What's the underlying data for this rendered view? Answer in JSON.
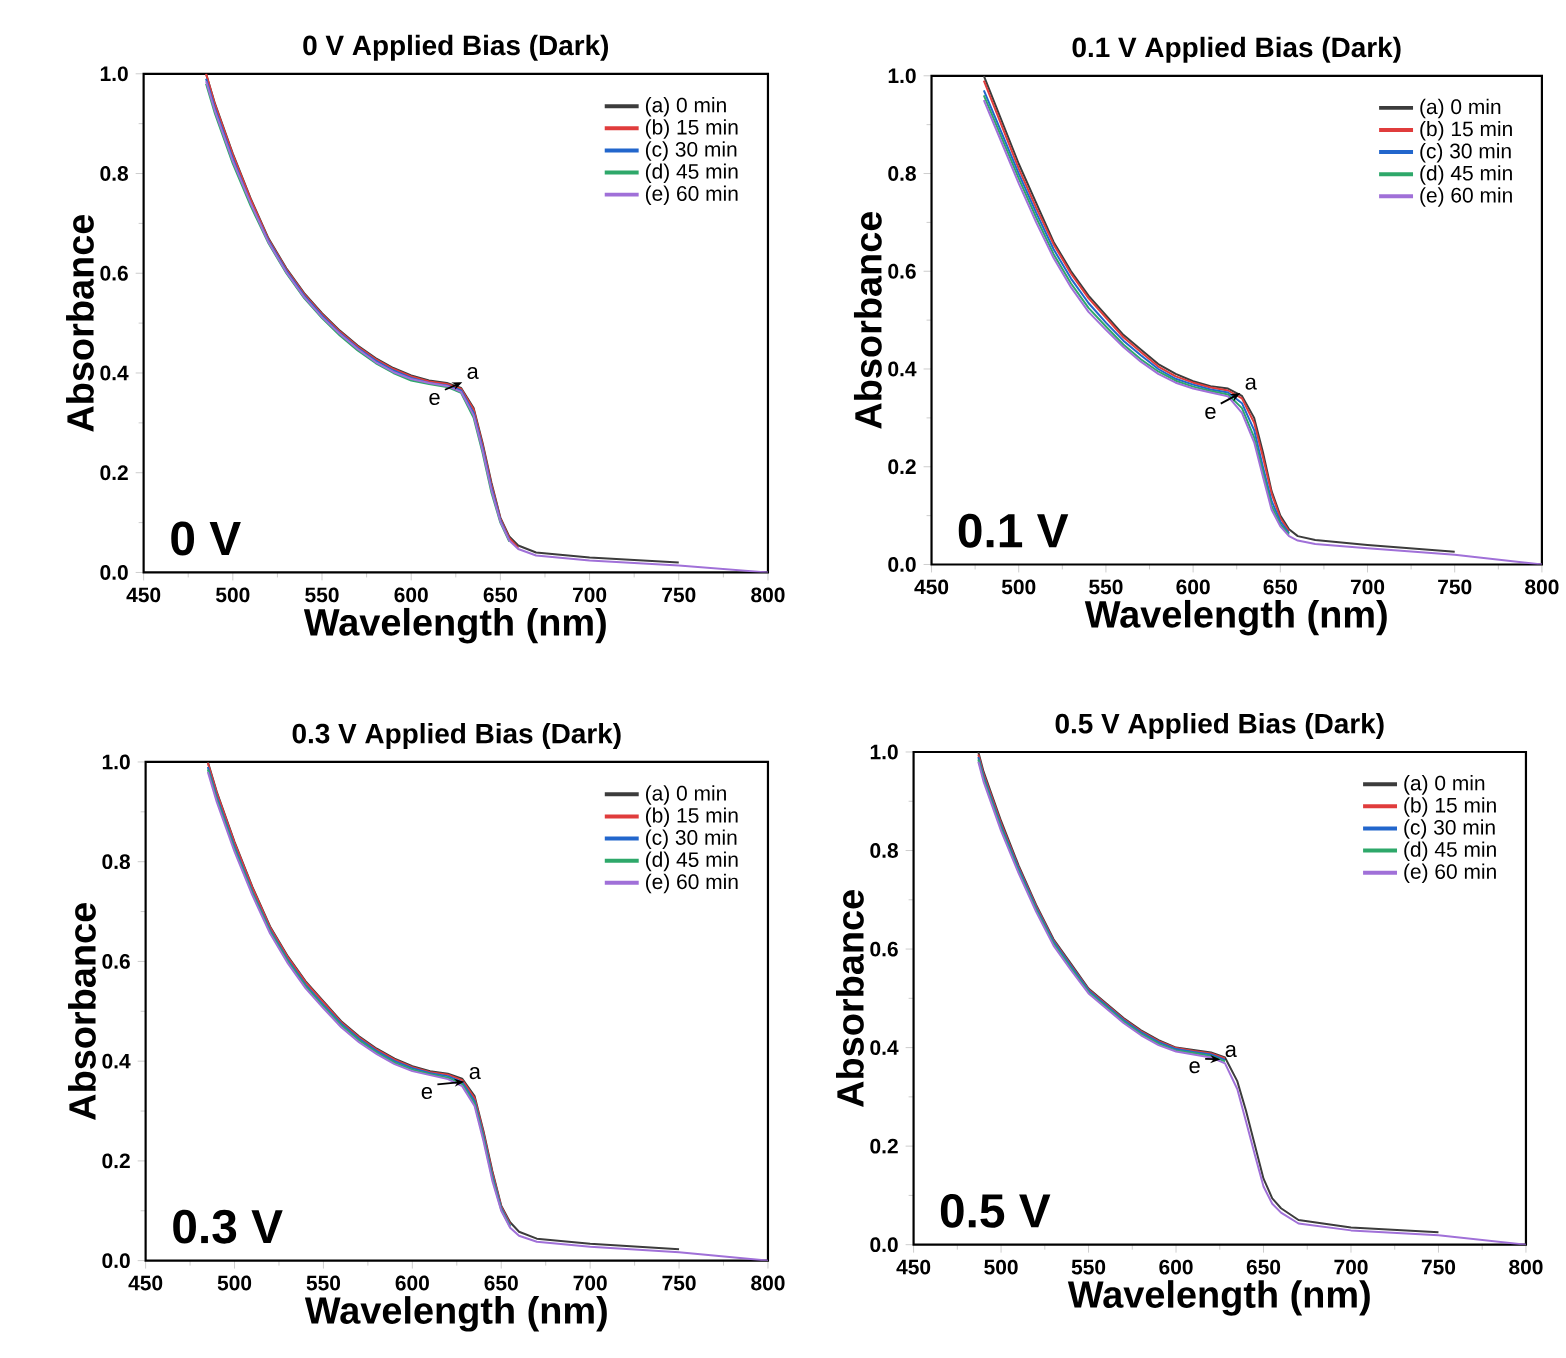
{
  "chart_data": [
    {
      "type": "line",
      "title": "0 V Applied Bias (Dark)",
      "xlabel": "Wavelength (nm)",
      "ylabel": "Absorbance",
      "legend": "top right",
      "line_style": "solid",
      "xlim": [
        450,
        800
      ],
      "ylim": [
        0,
        1
      ],
      "xticks": [
        450,
        500,
        550,
        600,
        650,
        700,
        750,
        800
      ],
      "yticks": [
        {
          "value": 0,
          "label": "0.0"
        },
        {
          "value": 0.2,
          "label": "0.2"
        },
        {
          "value": 0.4,
          "label": "0.4"
        },
        {
          "value": 0.6,
          "label": "0.6"
        },
        {
          "value": 0.8,
          "label": "0.8"
        },
        {
          "value": 1,
          "label": "1.0"
        }
      ],
      "x": [
        485,
        490,
        500,
        510,
        520,
        530,
        540,
        550,
        560,
        570,
        580,
        590,
        600,
        610,
        620,
        628,
        635,
        640,
        645,
        650,
        655,
        660,
        670,
        700,
        750,
        800
      ],
      "series": [
        {
          "name": "(a) 0 min",
          "color": "#3c3c3c",
          "values": [
            1.0,
            0.94,
            0.84,
            0.75,
            0.67,
            0.61,
            0.56,
            0.52,
            0.485,
            0.455,
            0.43,
            0.41,
            0.395,
            0.385,
            0.38,
            0.37,
            0.33,
            0.26,
            0.18,
            0.11,
            0.072,
            0.054,
            0.04,
            0.03,
            0.02,
            null
          ]
        },
        {
          "name": "(b) 15 min",
          "color": "#e03c3c",
          "values": [
            1.0,
            0.938,
            0.838,
            0.748,
            0.668,
            0.608,
            0.558,
            0.518,
            0.483,
            0.453,
            0.428,
            0.408,
            0.393,
            0.383,
            0.378,
            0.368,
            0.327,
            0.256,
            0.176,
            0.108,
            0.069,
            0.049,
            null,
            null,
            null,
            null
          ]
        },
        {
          "name": "(c) 30 min",
          "color": "#2266cc",
          "values": [
            0.99,
            0.93,
            0.83,
            0.74,
            0.665,
            0.605,
            0.555,
            0.515,
            0.48,
            0.45,
            0.425,
            0.405,
            0.39,
            0.38,
            0.375,
            0.365,
            0.32,
            0.25,
            0.17,
            0.105,
            0.065,
            null,
            null,
            null,
            null,
            null
          ]
        },
        {
          "name": "(d) 45 min",
          "color": "#2ea86a",
          "values": [
            0.98,
            0.92,
            0.82,
            0.735,
            0.66,
            0.6,
            0.55,
            0.51,
            0.475,
            0.445,
            0.42,
            0.4,
            0.385,
            0.378,
            0.372,
            0.36,
            0.31,
            0.24,
            0.16,
            0.1,
            0.062,
            null,
            null,
            null,
            null,
            null
          ]
        },
        {
          "name": "(e) 60 min",
          "color": "#a070d8",
          "values": [
            0.985,
            0.925,
            0.825,
            0.74,
            0.662,
            0.602,
            0.552,
            0.512,
            0.478,
            0.448,
            0.422,
            0.402,
            0.388,
            0.38,
            0.374,
            0.362,
            0.315,
            0.245,
            0.165,
            0.102,
            0.064,
            0.047,
            0.034,
            0.024,
            0.014,
            0.0
          ]
        }
      ],
      "annotations": [
        "e",
        "a",
        "0 V"
      ]
    },
    {
      "type": "line",
      "title": "0.1 V Applied Bias (Dark)",
      "xlabel": "Wavelength (nm)",
      "ylabel": "Absorbance",
      "legend": "top right",
      "line_style": "solid",
      "xlim": [
        450,
        800
      ],
      "ylim": [
        0,
        1
      ],
      "xticks": [
        450,
        500,
        550,
        600,
        650,
        700,
        750,
        800
      ],
      "yticks": [
        {
          "value": 0,
          "label": "0.0"
        },
        {
          "value": 0.2,
          "label": "0.2"
        },
        {
          "value": 0.4,
          "label": "0.4"
        },
        {
          "value": 0.6,
          "label": "0.6"
        },
        {
          "value": 0.8,
          "label": "0.8"
        },
        {
          "value": 1,
          "label": "1.0"
        }
      ],
      "x": [
        480,
        490,
        500,
        510,
        520,
        530,
        540,
        550,
        560,
        570,
        580,
        590,
        600,
        610,
        620,
        628,
        635,
        640,
        645,
        650,
        655,
        660,
        670,
        700,
        750,
        800
      ],
      "series": [
        {
          "name": "(a) 0 min",
          "color": "#3c3c3c",
          "values": [
            1.0,
            0.91,
            0.82,
            0.74,
            0.66,
            0.6,
            0.55,
            0.51,
            0.47,
            0.44,
            0.41,
            0.39,
            0.375,
            0.365,
            0.36,
            0.345,
            0.3,
            0.23,
            0.15,
            0.1,
            0.072,
            0.058,
            0.05,
            0.04,
            0.026,
            null
          ]
        },
        {
          "name": "(b) 15 min",
          "color": "#e03c3c",
          "values": [
            0.99,
            0.9,
            0.81,
            0.73,
            0.655,
            0.595,
            0.545,
            0.505,
            0.465,
            0.435,
            0.405,
            0.385,
            0.372,
            0.362,
            0.356,
            0.34,
            0.29,
            0.22,
            0.145,
            0.095,
            0.068,
            null,
            null,
            null,
            null,
            null
          ]
        },
        {
          "name": "(c) 30 min",
          "color": "#2266cc",
          "values": [
            0.97,
            0.885,
            0.8,
            0.72,
            0.645,
            0.585,
            0.535,
            0.495,
            0.458,
            0.428,
            0.4,
            0.38,
            0.368,
            0.358,
            0.352,
            0.33,
            0.275,
            0.2,
            0.13,
            0.088,
            0.064,
            null,
            null,
            null,
            null,
            null
          ]
        },
        {
          "name": "(d) 45 min",
          "color": "#2ea86a",
          "values": [
            0.96,
            0.875,
            0.79,
            0.71,
            0.635,
            0.575,
            0.525,
            0.487,
            0.45,
            0.42,
            0.395,
            0.376,
            0.364,
            0.355,
            0.348,
            0.32,
            0.26,
            0.19,
            0.12,
            0.082,
            0.061,
            null,
            null,
            null,
            null,
            null
          ]
        },
        {
          "name": "(e) 60 min",
          "color": "#a070d8",
          "values": [
            0.95,
            0.865,
            0.78,
            0.7,
            0.627,
            0.567,
            0.517,
            0.48,
            0.445,
            0.415,
            0.39,
            0.372,
            0.36,
            0.352,
            0.344,
            0.31,
            0.25,
            0.18,
            0.112,
            0.078,
            0.058,
            0.049,
            0.042,
            0.033,
            0.02,
            0.0
          ]
        }
      ],
      "annotations": [
        "e",
        "a",
        "0.1 V"
      ]
    },
    {
      "type": "line",
      "title": "0.3 V Applied Bias (Dark)",
      "xlabel": "Wavelength (nm)",
      "ylabel": "Absorbance",
      "legend": "top right",
      "line_style": "solid",
      "xlim": [
        450,
        800
      ],
      "ylim": [
        0,
        1
      ],
      "xticks": [
        450,
        500,
        550,
        600,
        650,
        700,
        750,
        800
      ],
      "yticks": [
        {
          "value": 0,
          "label": "0.0"
        },
        {
          "value": 0.2,
          "label": "0.2"
        },
        {
          "value": 0.4,
          "label": "0.4"
        },
        {
          "value": 0.6,
          "label": "0.6"
        },
        {
          "value": 0.8,
          "label": "0.8"
        },
        {
          "value": 1,
          "label": "1.0"
        }
      ],
      "x": [
        485,
        490,
        500,
        510,
        520,
        530,
        540,
        550,
        560,
        570,
        580,
        590,
        600,
        610,
        620,
        628,
        635,
        640,
        645,
        650,
        655,
        660,
        670,
        700,
        750,
        800
      ],
      "series": [
        {
          "name": "(a) 0 min",
          "color": "#3c3c3c",
          "values": [
            1.0,
            0.94,
            0.84,
            0.75,
            0.67,
            0.61,
            0.56,
            0.52,
            0.48,
            0.45,
            0.425,
            0.405,
            0.39,
            0.38,
            0.375,
            0.365,
            0.33,
            0.26,
            0.18,
            0.11,
            0.077,
            0.058,
            0.044,
            0.034,
            0.023,
            null
          ]
        },
        {
          "name": "(b) 15 min",
          "color": "#e03c3c",
          "values": [
            0.998,
            0.938,
            0.838,
            0.748,
            0.668,
            0.608,
            0.558,
            0.518,
            0.478,
            0.448,
            0.423,
            0.403,
            0.388,
            0.378,
            0.373,
            0.362,
            0.326,
            0.256,
            0.176,
            0.108,
            0.073,
            null,
            null,
            null,
            null,
            null
          ]
        },
        {
          "name": "(c) 30 min",
          "color": "#2266cc",
          "values": [
            0.99,
            0.93,
            0.83,
            0.74,
            0.663,
            0.603,
            0.553,
            0.513,
            0.475,
            0.445,
            0.42,
            0.4,
            0.386,
            0.376,
            0.37,
            0.358,
            0.32,
            0.25,
            0.17,
            0.105,
            0.07,
            null,
            null,
            null,
            null,
            null
          ]
        },
        {
          "name": "(d) 45 min",
          "color": "#2ea86a",
          "values": [
            0.985,
            0.925,
            0.825,
            0.737,
            0.66,
            0.6,
            0.55,
            0.51,
            0.472,
            0.442,
            0.417,
            0.397,
            0.383,
            0.374,
            0.367,
            0.354,
            0.315,
            0.245,
            0.165,
            0.102,
            0.068,
            null,
            null,
            null,
            null,
            null
          ]
        },
        {
          "name": "(e) 60 min",
          "color": "#a070d8",
          "values": [
            0.98,
            0.92,
            0.82,
            0.733,
            0.656,
            0.596,
            0.546,
            0.506,
            0.468,
            0.438,
            0.414,
            0.394,
            0.38,
            0.372,
            0.364,
            0.35,
            0.31,
            0.24,
            0.16,
            0.1,
            0.066,
            0.05,
            0.038,
            0.028,
            0.017,
            0.0
          ]
        }
      ],
      "annotations": [
        "e",
        "a",
        "0.3 V"
      ]
    },
    {
      "type": "line",
      "title": "0.5 V Applied Bias (Dark)",
      "xlabel": "Wavelength (nm)",
      "ylabel": "Absorbance",
      "legend": "top right",
      "line_style": "solid",
      "xlim": [
        450,
        800
      ],
      "ylim": [
        0,
        1
      ],
      "xticks": [
        450,
        500,
        550,
        600,
        650,
        700,
        750,
        800
      ],
      "yticks": [
        {
          "value": 0,
          "label": "0.0"
        },
        {
          "value": 0.2,
          "label": "0.2"
        },
        {
          "value": 0.4,
          "label": "0.4"
        },
        {
          "value": 0.6,
          "label": "0.6"
        },
        {
          "value": 0.8,
          "label": "0.8"
        },
        {
          "value": 1,
          "label": "1.0"
        }
      ],
      "x": [
        487,
        490,
        500,
        510,
        520,
        530,
        540,
        550,
        560,
        570,
        580,
        590,
        600,
        610,
        620,
        628,
        635,
        640,
        645,
        650,
        655,
        660,
        670,
        700,
        750,
        800
      ],
      "series": [
        {
          "name": "(a) 0 min",
          "color": "#3c3c3c",
          "values": [
            1.0,
            0.96,
            0.86,
            0.77,
            0.69,
            0.62,
            0.57,
            0.52,
            0.49,
            0.46,
            0.435,
            0.415,
            0.4,
            0.395,
            0.39,
            0.38,
            0.332,
            0.272,
            0.203,
            0.134,
            0.094,
            0.074,
            0.05,
            0.035,
            0.025,
            null
          ]
        },
        {
          "name": "(b) 15 min",
          "color": "#e03c3c",
          "values": [
            0.995,
            0.955,
            0.855,
            0.766,
            0.687,
            0.617,
            0.567,
            0.518,
            0.488,
            0.458,
            0.433,
            0.413,
            0.399,
            0.393,
            0.388,
            0.378,
            null,
            null,
            null,
            null,
            null,
            null,
            null,
            null,
            null,
            null
          ]
        },
        {
          "name": "(c) 30 min",
          "color": "#2266cc",
          "values": [
            0.99,
            0.95,
            0.85,
            0.763,
            0.684,
            0.615,
            0.565,
            0.516,
            0.486,
            0.456,
            0.431,
            0.411,
            0.397,
            0.391,
            0.386,
            0.375,
            null,
            null,
            null,
            null,
            null,
            null,
            null,
            null,
            null,
            null
          ]
        },
        {
          "name": "(d) 45 min",
          "color": "#2ea86a",
          "values": [
            0.985,
            0.945,
            0.845,
            0.758,
            0.68,
            0.611,
            0.561,
            0.513,
            0.483,
            0.453,
            0.428,
            0.408,
            0.394,
            0.389,
            0.383,
            0.372,
            null,
            null,
            null,
            null,
            null,
            null,
            null,
            null,
            null,
            null
          ]
        },
        {
          "name": "(e) 60 min",
          "color": "#a070d8",
          "values": [
            0.98,
            0.94,
            0.84,
            0.754,
            0.676,
            0.607,
            0.557,
            0.51,
            0.48,
            0.45,
            0.425,
            0.405,
            0.392,
            0.386,
            0.38,
            0.368,
            0.316,
            0.25,
            0.183,
            0.118,
            0.083,
            0.065,
            0.043,
            0.029,
            0.019,
            0.0
          ]
        }
      ],
      "annotations": [
        "e",
        "a",
        "0.5 V"
      ]
    }
  ]
}
